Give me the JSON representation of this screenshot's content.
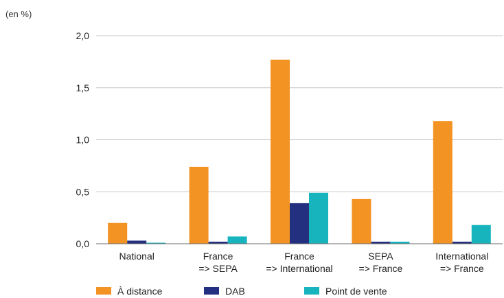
{
  "unit_label": "(en %)",
  "chart_data": {
    "type": "bar",
    "categories": [
      [
        "National"
      ],
      [
        "France",
        "=> SEPA"
      ],
      [
        "France",
        "=> International"
      ],
      [
        "SEPA",
        "=> France"
      ],
      [
        "International",
        "=> France"
      ]
    ],
    "series": [
      {
        "name": "À distance",
        "color": "#f39323",
        "values": [
          0.2,
          0.74,
          1.77,
          0.43,
          1.18
        ]
      },
      {
        "name": "DAB",
        "color": "#23307f",
        "values": [
          0.03,
          0.02,
          0.39,
          0.02,
          0.02
        ]
      },
      {
        "name": "Point de vente",
        "color": "#17b4be",
        "values": [
          0.01,
          0.07,
          0.49,
          0.02,
          0.18
        ]
      }
    ],
    "yticks": [
      "0,0",
      "0,5",
      "1,0",
      "1,5",
      "2,0"
    ],
    "ylim": [
      0,
      2
    ],
    "grid": true,
    "legend_position": "bottom"
  }
}
